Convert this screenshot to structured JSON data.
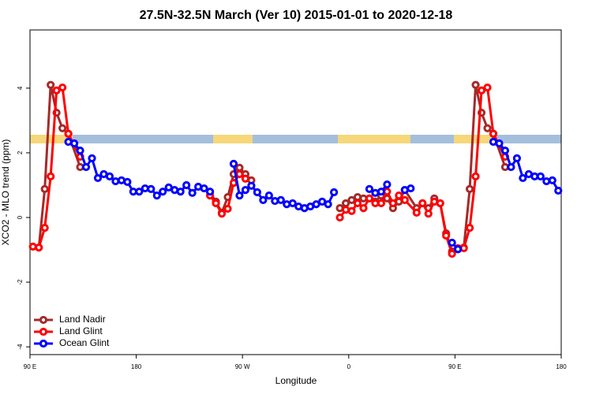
{
  "chart_data": {
    "type": "line",
    "title": "27.5N-32.5N March (Ver 10)   2015-01-01 to 2020-12-18",
    "x_label": "Longitude",
    "y_label": "XCO2 - MLO trend (ppm)",
    "xlim": [
      90,
      540
    ],
    "ylim": [
      -4.24,
      5.8
    ],
    "xticks": [
      {
        "value": 90,
        "label": "90 E"
      },
      180,
      {
        "value": 270,
        "label": "90 W"
      },
      {
        "value": 360,
        "label": "0"
      },
      {
        "value": 450,
        "label": "90 E"
      },
      {
        "value": 540,
        "label": "180"
      }
    ],
    "yticks": [
      -4,
      -2,
      0,
      2,
      4
    ],
    "legend": "bottom-left",
    "series": [
      {
        "name": "Land Nadir",
        "color": "#a52a2a",
        "x": [
          92.5,
          97.5,
          102.5,
          107.5,
          112.5,
          117.5,
          122.5,
          132.5,
          200,
          242.5,
          247.5,
          252.5,
          257.5,
          262.5,
          267.5,
          272.5,
          277.5,
          320,
          352.5,
          357.5,
          362.5,
          367.5,
          372.5,
          377.5,
          382.5,
          387.5,
          392.5,
          397.5,
          402.5,
          407.5,
          417.5,
          422.5,
          427.5,
          432.5,
          437.5,
          442.5,
          447.5,
          452.5,
          457.5,
          462.5,
          467.5,
          472.5,
          477.5,
          482.5,
          492.5
        ],
        "values": [
          -0.9,
          -0.93,
          0.88,
          4.1,
          3.24,
          2.76,
          2.59,
          1.56,
          null,
          0.78,
          0.49,
          0.15,
          0.63,
          1.34,
          1.54,
          1.34,
          1.15,
          null,
          0.29,
          0.44,
          0.54,
          0.63,
          0.59,
          0.59,
          0.49,
          0.68,
          0.59,
          0.29,
          0.49,
          0.85,
          0.29,
          0.44,
          0.29,
          0.59,
          0.44,
          -0.49,
          -1.05,
          -0.98,
          -0.93,
          0.88,
          4.1,
          3.24,
          2.76,
          2.59,
          1.56
        ]
      },
      {
        "name": "Land Glint",
        "color": "#ff0000",
        "x": [
          92.5,
          97.5,
          102.5,
          107.5,
          112.5,
          117.5,
          122.5,
          132.5,
          200,
          242.5,
          247.5,
          252.5,
          257.5,
          262.5,
          267.5,
          272.5,
          320,
          352.5,
          357.5,
          362.5,
          367.5,
          372.5,
          377.5,
          382.5,
          387.5,
          392.5,
          397.5,
          402.5,
          407.5,
          417.5,
          422.5,
          427.5,
          432.5,
          437.5,
          442.5,
          447.5,
          452.5,
          457.5,
          462.5,
          467.5,
          472.5,
          477.5,
          482.5,
          492.5
        ],
        "values": [
          -0.9,
          -0.93,
          -0.32,
          1.27,
          3.93,
          4.02,
          2.59,
          1.88,
          null,
          0.68,
          0.44,
          0.12,
          0.27,
          1.07,
          1.34,
          1.2,
          null,
          0.0,
          0.24,
          0.2,
          0.44,
          0.29,
          0.59,
          0.44,
          0.44,
          0.8,
          0.44,
          0.68,
          0.54,
          0.15,
          0.44,
          0.12,
          0.49,
          0.44,
          -0.56,
          -1.12,
          -0.95,
          -0.95,
          -0.32,
          1.27,
          3.93,
          4.02,
          2.59,
          1.88
        ]
      },
      {
        "name": "Ocean Glint",
        "color": "#0000ff",
        "x": [
          122.5,
          127.5,
          132.5,
          137.5,
          142.5,
          147.5,
          152.5,
          157.5,
          162.5,
          167.5,
          172.5,
          177.5,
          182.5,
          187.5,
          192.5,
          197.5,
          202.5,
          207.5,
          212.5,
          217.5,
          222.5,
          227.5,
          232.5,
          237.5,
          242.5,
          250,
          262.5,
          267.5,
          272.5,
          277.5,
          282.5,
          287.5,
          292.5,
          297.5,
          302.5,
          307.5,
          312.5,
          317.5,
          322.5,
          327.5,
          332.5,
          337.5,
          342.5,
          347.5,
          360,
          377.5,
          382.5,
          387.5,
          392.5,
          400,
          407.5,
          412.5,
          430,
          447.5,
          452.5,
          460,
          482.5,
          487.5,
          492.5,
          497.5,
          502.5,
          507.5,
          512.5,
          517.5,
          522.5,
          527.5,
          532.5,
          537.5
        ],
        "values": [
          2.34,
          2.29,
          2.07,
          1.56,
          1.83,
          1.22,
          1.34,
          1.27,
          1.12,
          1.15,
          1.1,
          0.8,
          0.8,
          0.9,
          0.88,
          0.68,
          0.8,
          0.93,
          0.85,
          0.8,
          1.0,
          0.76,
          0.95,
          0.9,
          0.8,
          null,
          1.66,
          0.68,
          0.85,
          0.98,
          0.78,
          0.54,
          0.68,
          0.51,
          0.54,
          0.41,
          0.44,
          0.34,
          0.29,
          0.34,
          0.41,
          0.49,
          0.41,
          0.78,
          null,
          0.88,
          0.76,
          0.8,
          1.02,
          null,
          0.85,
          0.9,
          null,
          -0.78,
          -0.98,
          null,
          2.34,
          2.29,
          2.07,
          1.56,
          1.83,
          1.22,
          1.34,
          1.27,
          1.27,
          1.12,
          1.15,
          0.83
        ]
      }
    ]
  }
}
